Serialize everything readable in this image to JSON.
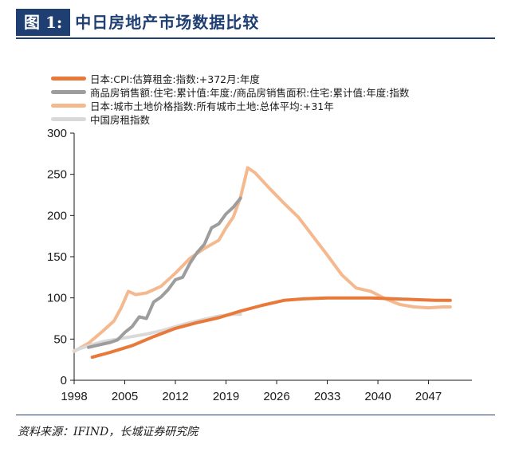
{
  "header": {
    "label": "图 1:",
    "title": "中日房地产市场数据比较"
  },
  "source": "资料来源：IFIND，长城证券研究院",
  "chart_data": {
    "type": "line",
    "title": "",
    "xlabel": "",
    "ylabel": "",
    "xlim": [
      1998,
      2053
    ],
    "ylim": [
      0,
      300
    ],
    "xticks": [
      1998,
      2005,
      2012,
      2019,
      2026,
      2033,
      2040,
      2047
    ],
    "yticks": [
      0,
      50,
      100,
      150,
      200,
      250,
      300
    ],
    "grid": false,
    "legend": "top-left",
    "series": [
      {
        "name": "日本:CPI:估算租金:指数:+372月:年度",
        "color": "#e8793a",
        "x": [
          2000.5,
          2003,
          2006,
          2009,
          2012,
          2015,
          2018,
          2021,
          2024,
          2027,
          2030,
          2033,
          2036,
          2039,
          2042,
          2045,
          2048,
          2050
        ],
        "y": [
          28,
          34,
          42,
          53,
          63,
          70,
          76,
          84,
          91,
          97,
          99,
          100,
          100,
          100,
          99,
          98,
          97,
          97
        ]
      },
      {
        "name": "商品房销售额:住宅:累计值:年度:/商品房销售面积:住宅:累计值:年度:指数",
        "color": "#9d9d9d",
        "x": [
          2000,
          2001,
          2002,
          2003,
          2004,
          2005,
          2006,
          2007,
          2008,
          2009,
          2010,
          2011,
          2012,
          2013,
          2014,
          2015,
          2016,
          2017,
          2018,
          2019,
          2020,
          2021
        ],
        "y": [
          40,
          42,
          44,
          46,
          49,
          58,
          65,
          77,
          75,
          95,
          101,
          110,
          122,
          125,
          142,
          155,
          165,
          185,
          190,
          202,
          210,
          221
        ]
      },
      {
        "name": "日本:城市土地价格指数:所有城市土地:总体平均:+31年",
        "color": "#f5b98f",
        "x": [
          1998,
          2000,
          2002,
          2003.5,
          2004.5,
          2005.5,
          2006.5,
          2008,
          2010,
          2012,
          2014,
          2016,
          2018,
          2019,
          2020,
          2021,
          2022,
          2023,
          2025,
          2027,
          2029,
          2031,
          2033,
          2035,
          2037,
          2039,
          2041,
          2043,
          2045,
          2047,
          2049,
          2050
        ],
        "y": [
          35,
          45,
          60,
          72,
          88,
          108,
          104,
          106,
          114,
          130,
          148,
          160,
          170,
          185,
          198,
          222,
          258,
          252,
          233,
          215,
          198,
          175,
          152,
          128,
          112,
          108,
          99,
          92,
          89,
          88,
          89,
          89
        ]
      },
      {
        "name": "中国房租指数",
        "color": "#d9d9d9",
        "x": [
          1998,
          2000,
          2002,
          2004,
          2006,
          2008,
          2010,
          2012,
          2014,
          2016,
          2018,
          2019,
          2020,
          2021
        ],
        "y": [
          36,
          42,
          47,
          50,
          53,
          56,
          60,
          65,
          70,
          74,
          78,
          79,
          80,
          80
        ]
      }
    ]
  }
}
